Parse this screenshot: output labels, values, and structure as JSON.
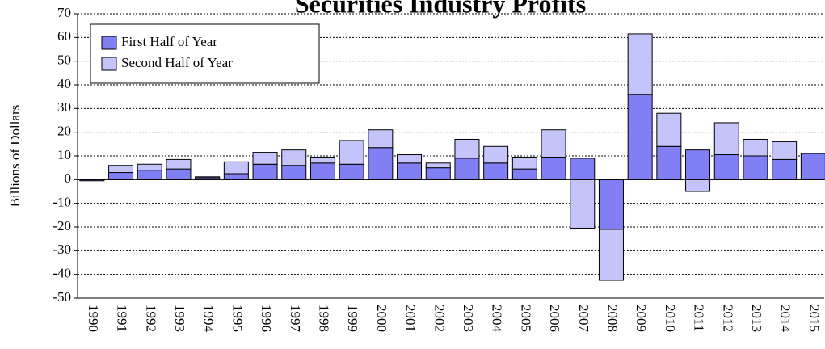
{
  "chart_data": {
    "type": "stacked_bar",
    "title": "Securities Industry Profits",
    "y_label": "Billions of Dollars",
    "categories": [
      "1990",
      "1991",
      "1992",
      "1993",
      "1994",
      "1995",
      "1996",
      "1997",
      "1998",
      "1999",
      "2000",
      "2001",
      "2002",
      "2003",
      "2004",
      "2005",
      "2006",
      "2007",
      "2008",
      "2009",
      "2010",
      "2011",
      "2012",
      "2013",
      "2014",
      "2015"
    ],
    "series": [
      {
        "name": "First Half of Year",
        "color": "#8080f4",
        "values": [
          -0.5,
          3,
          4,
          4.5,
          0.8,
          2.5,
          6.5,
          6,
          7,
          6.5,
          13.5,
          7,
          5,
          9,
          7,
          4.5,
          9.5,
          9,
          -21,
          36,
          14,
          12.5,
          10.5,
          10,
          8.5,
          11
        ]
      },
      {
        "name": "Second Half of Year",
        "color": "#c4c4fb",
        "values": [
          0,
          3,
          2.5,
          4,
          0.4,
          5,
          5,
          6.5,
          2.5,
          10,
          7.5,
          3.5,
          2,
          8,
          7,
          5,
          11.5,
          -20.5,
          -21.5,
          25.5,
          14,
          -5,
          13.5,
          7,
          7.5,
          null
        ]
      }
    ],
    "ylim": [
      -50,
      70
    ],
    "yticks": [
      -50,
      -40,
      -30,
      -20,
      -10,
      0,
      10,
      20,
      30,
      40,
      50,
      60,
      70
    ],
    "grid": true,
    "legend": "top-left"
  }
}
